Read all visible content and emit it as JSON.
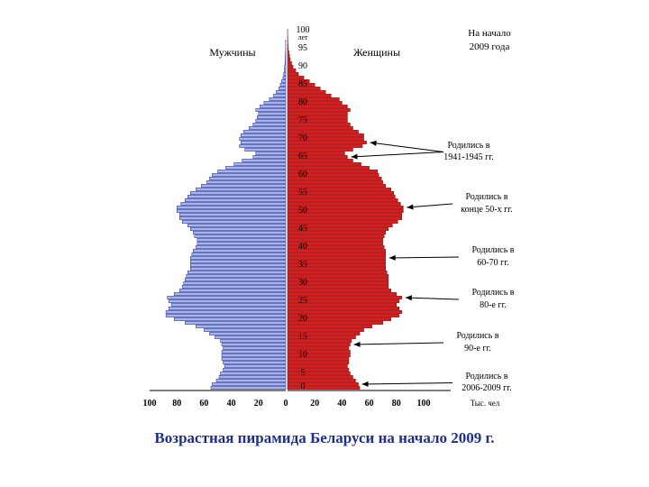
{
  "chart_data": {
    "type": "bar",
    "title": "На начало 2009 года",
    "male_label": "Мужчины",
    "female_label": "Женщины",
    "age_unit": "лет",
    "unit_label": "Тыс. чел",
    "xlim": [
      -100,
      100
    ],
    "x_ticks": [
      "100",
      "80",
      "60",
      "40",
      "20",
      "0",
      "20",
      "40",
      "60",
      "80",
      "100"
    ],
    "age_ticks": [
      "0",
      "5",
      "10",
      "15",
      "20",
      "25",
      "30",
      "35",
      "40",
      "45",
      "50",
      "55",
      "60",
      "65",
      "70",
      "75",
      "80",
      "85",
      "90",
      "95",
      "100"
    ],
    "ages": [
      0,
      1,
      2,
      3,
      4,
      5,
      6,
      7,
      8,
      9,
      10,
      11,
      12,
      13,
      14,
      15,
      16,
      17,
      18,
      19,
      20,
      21,
      22,
      23,
      24,
      25,
      26,
      27,
      28,
      29,
      30,
      31,
      32,
      33,
      34,
      35,
      36,
      37,
      38,
      39,
      40,
      41,
      42,
      43,
      44,
      45,
      46,
      47,
      48,
      49,
      50,
      51,
      52,
      53,
      54,
      55,
      56,
      57,
      58,
      59,
      60,
      61,
      62,
      63,
      64,
      65,
      66,
      67,
      68,
      69,
      70,
      71,
      72,
      73,
      74,
      75,
      76,
      77,
      78,
      79,
      80,
      81,
      82,
      83,
      84,
      85,
      86,
      87,
      88,
      89,
      90,
      91,
      92,
      93,
      94,
      95,
      96,
      97,
      98,
      99,
      100
    ],
    "series": [
      {
        "name": "Мужчины",
        "color": "#a8b4ec",
        "values": [
          55,
          54,
          51,
          49,
          48,
          46,
          45,
          46,
          47,
          47,
          47,
          46,
          47,
          48,
          52,
          56,
          60,
          66,
          74,
          82,
          88,
          88,
          86,
          84,
          86,
          87,
          82,
          78,
          76,
          75,
          74,
          73,
          72,
          70,
          70,
          70,
          70,
          69,
          68,
          66,
          65,
          65,
          67,
          68,
          70,
          72,
          76,
          78,
          78,
          80,
          80,
          77,
          74,
          72,
          70,
          66,
          62,
          58,
          56,
          54,
          50,
          44,
          38,
          32,
          24,
          22,
          30,
          34,
          33,
          34,
          33,
          31,
          27,
          24,
          22,
          21,
          20,
          22,
          19,
          16,
          12,
          9,
          7,
          5,
          4,
          3,
          2,
          1.5,
          1,
          0.8,
          0.6,
          0.4,
          0.3,
          0.2,
          0.1,
          0.1,
          0.1,
          0,
          0,
          0,
          0
        ]
      },
      {
        "name": "Женщины",
        "color": "#dc1c1c",
        "values": [
          53,
          52,
          50,
          48,
          46,
          45,
          44,
          45,
          45,
          46,
          46,
          45,
          46,
          47,
          50,
          53,
          56,
          62,
          70,
          76,
          82,
          84,
          82,
          80,
          82,
          84,
          80,
          76,
          74,
          74,
          74,
          74,
          73,
          72,
          72,
          72,
          72,
          72,
          72,
          71,
          70,
          70,
          71,
          72,
          74,
          77,
          81,
          84,
          84,
          85,
          85,
          83,
          81,
          79,
          78,
          76,
          72,
          70,
          69,
          67,
          66,
          60,
          54,
          48,
          44,
          42,
          48,
          55,
          58,
          56,
          56,
          52,
          48,
          46,
          44,
          44,
          44,
          46,
          44,
          40,
          38,
          32,
          28,
          24,
          20,
          16,
          12,
          8,
          6,
          4,
          3,
          2,
          1.5,
          1,
          0.6,
          0.4,
          0.3,
          0.2,
          0.1,
          0.1,
          0
        ]
      }
    ],
    "annotations": [
      {
        "text": "Родились в 1941-1945 гг.",
        "ages": [
          64,
          68
        ]
      },
      {
        "text": "Родились в конце 50-х гг.",
        "ages": [
          50
        ]
      },
      {
        "text": "Родились в 60-70 гг.",
        "ages": [
          36
        ]
      },
      {
        "text": "Родились в 80-е гг.",
        "ages": [
          25
        ]
      },
      {
        "text": "Родились в 90-е гг.",
        "ages": [
          12
        ]
      },
      {
        "text": "Родились в 2006-2009 гг.",
        "ages": [
          1
        ]
      }
    ]
  },
  "caption": "Возрастная пирамида Беларуси на начало 2009 г."
}
